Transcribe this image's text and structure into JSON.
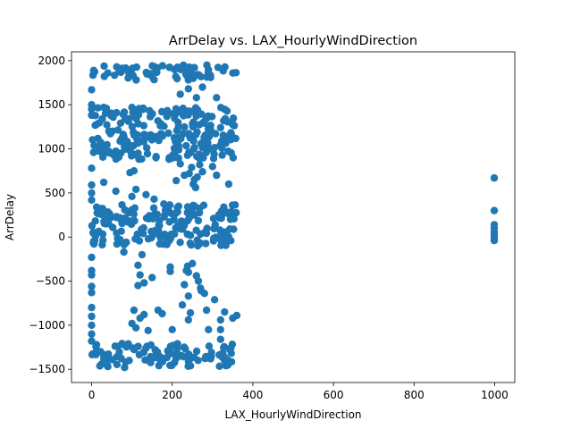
{
  "chart_data": {
    "type": "scatter",
    "title": "ArrDelay vs. LAX_HourlyWindDirection",
    "xlabel": "LAX_HourlyWindDirection",
    "ylabel": "ArrDelay",
    "xlim": [
      -50,
      1050
    ],
    "ylim": [
      -1650,
      2100
    ],
    "xticks": [
      0,
      200,
      400,
      600,
      800,
      1000
    ],
    "xtick_labels": [
      "0",
      "200",
      "400",
      "600",
      "800",
      "1000"
    ],
    "yticks": [
      -1500,
      -1000,
      -500,
      0,
      500,
      1000,
      1500,
      2000
    ],
    "ytick_labels": [
      "−1500",
      "−1000",
      "−500",
      "0",
      "500",
      "1000",
      "1500",
      "2000"
    ],
    "grid": false,
    "marker_color": "#1f77b4",
    "bands": [
      {
        "x_range": [
          0,
          360
        ],
        "y_range": [
          1780,
          1950
        ],
        "note": "dense band near 1850"
      },
      {
        "x_range": [
          0,
          360
        ],
        "y_range": [
          880,
          1470
        ],
        "note": "dense band around 900–1450"
      },
      {
        "x_range": [
          0,
          360
        ],
        "y_range": [
          -100,
          380
        ],
        "note": "dense band around 0"
      },
      {
        "x_range": [
          0,
          360
        ],
        "y_range": [
          -1480,
          -1200
        ],
        "note": "dense band near -1350"
      }
    ],
    "points": [
      {
        "x": 0,
        "y": 1670
      },
      {
        "x": 0,
        "y": 1500
      },
      {
        "x": 0,
        "y": 1450
      },
      {
        "x": 0,
        "y": 1380
      },
      {
        "x": 0,
        "y": 780
      },
      {
        "x": 0,
        "y": 590
      },
      {
        "x": 0,
        "y": 500
      },
      {
        "x": 0,
        "y": 420
      },
      {
        "x": 0,
        "y": -230
      },
      {
        "x": 0,
        "y": -380
      },
      {
        "x": 0,
        "y": -430
      },
      {
        "x": 0,
        "y": -560
      },
      {
        "x": 0,
        "y": -630
      },
      {
        "x": 0,
        "y": -800
      },
      {
        "x": 0,
        "y": -900
      },
      {
        "x": 0,
        "y": -1000
      },
      {
        "x": 0,
        "y": -1100
      },
      {
        "x": 0,
        "y": -1180
      },
      {
        "x": 30,
        "y": 620
      },
      {
        "x": 60,
        "y": 520
      },
      {
        "x": 80,
        "y": -170
      },
      {
        "x": 95,
        "y": 730
      },
      {
        "x": 105,
        "y": 750
      },
      {
        "x": 100,
        "y": 460
      },
      {
        "x": 110,
        "y": 540
      },
      {
        "x": 115,
        "y": -320
      },
      {
        "x": 120,
        "y": -430
      },
      {
        "x": 125,
        "y": -200
      },
      {
        "x": 115,
        "y": -550
      },
      {
        "x": 130,
        "y": -520
      },
      {
        "x": 135,
        "y": 480
      },
      {
        "x": 150,
        "y": -460
      },
      {
        "x": 155,
        "y": 430
      },
      {
        "x": 165,
        "y": -830
      },
      {
        "x": 100,
        "y": -980
      },
      {
        "x": 105,
        "y": -830
      },
      {
        "x": 110,
        "y": -1030
      },
      {
        "x": 120,
        "y": -920
      },
      {
        "x": 130,
        "y": -880
      },
      {
        "x": 140,
        "y": -1060
      },
      {
        "x": 175,
        "y": -870
      },
      {
        "x": 195,
        "y": -340
      },
      {
        "x": 195,
        "y": -390
      },
      {
        "x": 200,
        "y": -1050
      },
      {
        "x": 210,
        "y": 640
      },
      {
        "x": 220,
        "y": 830
      },
      {
        "x": 225,
        "y": -770
      },
      {
        "x": 230,
        "y": -540
      },
      {
        "x": 230,
        "y": 700
      },
      {
        "x": 235,
        "y": -380
      },
      {
        "x": 238,
        "y": -330
      },
      {
        "x": 240,
        "y": -400
      },
      {
        "x": 240,
        "y": -670
      },
      {
        "x": 240,
        "y": -940
      },
      {
        "x": 242,
        "y": 720
      },
      {
        "x": 245,
        "y": -860
      },
      {
        "x": 248,
        "y": 790
      },
      {
        "x": 250,
        "y": -300
      },
      {
        "x": 252,
        "y": 600
      },
      {
        "x": 255,
        "y": 650
      },
      {
        "x": 258,
        "y": 560
      },
      {
        "x": 260,
        "y": -440
      },
      {
        "x": 262,
        "y": 680
      },
      {
        "x": 265,
        "y": -500
      },
      {
        "x": 268,
        "y": 820
      },
      {
        "x": 270,
        "y": -580
      },
      {
        "x": 272,
        "y": -610
      },
      {
        "x": 275,
        "y": 740
      },
      {
        "x": 280,
        "y": -640
      },
      {
        "x": 285,
        "y": -830
      },
      {
        "x": 290,
        "y": -1050
      },
      {
        "x": 300,
        "y": 800
      },
      {
        "x": 305,
        "y": -710
      },
      {
        "x": 310,
        "y": 700
      },
      {
        "x": 320,
        "y": -940
      },
      {
        "x": 320,
        "y": -1050
      },
      {
        "x": 320,
        "y": -1160
      },
      {
        "x": 330,
        "y": -850
      },
      {
        "x": 340,
        "y": 600
      },
      {
        "x": 350,
        "y": -920
      },
      {
        "x": 360,
        "y": -890
      },
      {
        "x": 220,
        "y": 1620
      },
      {
        "x": 240,
        "y": 1680
      },
      {
        "x": 260,
        "y": 1580
      },
      {
        "x": 275,
        "y": 1700
      },
      {
        "x": 310,
        "y": 1580
      },
      {
        "x": 100,
        "y": 1470
      },
      {
        "x": 30,
        "y": 1470
      },
      {
        "x": 999,
        "y": 670
      },
      {
        "x": 999,
        "y": 300
      },
      {
        "x": 999,
        "y": 140
      },
      {
        "x": 999,
        "y": 100
      },
      {
        "x": 999,
        "y": 60
      },
      {
        "x": 999,
        "y": 20
      },
      {
        "x": 999,
        "y": -10
      },
      {
        "x": 999,
        "y": -40
      }
    ]
  }
}
